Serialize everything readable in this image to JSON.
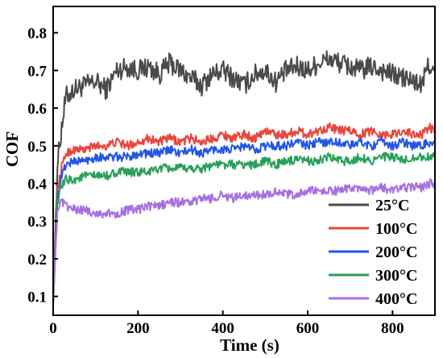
{
  "chart_data": {
    "type": "line",
    "xlabel": "Time (s)",
    "ylabel": "COF",
    "xlim": [
      0,
      900
    ],
    "ylim": [
      0.05,
      0.87
    ],
    "xticks": [
      0,
      200,
      400,
      600,
      800
    ],
    "yticks": [
      0.1,
      0.2,
      0.3,
      0.4,
      0.5,
      0.6,
      0.7,
      0.8
    ],
    "legend_position": "lower-right",
    "grid": false,
    "series": [
      {
        "name": "25°C",
        "color": "#4a4a4a",
        "x": [
          0,
          10,
          20,
          30,
          50,
          75,
          100,
          125,
          150,
          175,
          200,
          225,
          250,
          275,
          300,
          325,
          350,
          375,
          400,
          425,
          450,
          475,
          500,
          525,
          550,
          575,
          600,
          625,
          650,
          675,
          700,
          725,
          750,
          775,
          800,
          825,
          850,
          870,
          885,
          900
        ],
        "y": [
          0.08,
          0.45,
          0.55,
          0.63,
          0.65,
          0.66,
          0.67,
          0.65,
          0.7,
          0.71,
          0.7,
          0.71,
          0.69,
          0.72,
          0.7,
          0.68,
          0.66,
          0.69,
          0.7,
          0.68,
          0.66,
          0.69,
          0.7,
          0.67,
          0.7,
          0.71,
          0.7,
          0.72,
          0.73,
          0.72,
          0.71,
          0.7,
          0.71,
          0.7,
          0.69,
          0.68,
          0.67,
          0.66,
          0.72,
          0.69
        ]
      },
      {
        "name": "100°C",
        "color": "#e8453c",
        "x": [
          0,
          10,
          20,
          30,
          50,
          75,
          100,
          125,
          150,
          175,
          200,
          225,
          250,
          275,
          300,
          325,
          350,
          375,
          400,
          425,
          450,
          475,
          500,
          525,
          550,
          575,
          600,
          625,
          650,
          675,
          700,
          725,
          750,
          775,
          800,
          825,
          850,
          870,
          885,
          900
        ],
        "y": [
          0.08,
          0.38,
          0.44,
          0.48,
          0.49,
          0.49,
          0.5,
          0.5,
          0.51,
          0.5,
          0.51,
          0.52,
          0.51,
          0.52,
          0.51,
          0.52,
          0.51,
          0.52,
          0.53,
          0.52,
          0.53,
          0.52,
          0.54,
          0.53,
          0.53,
          0.54,
          0.53,
          0.54,
          0.55,
          0.54,
          0.54,
          0.53,
          0.54,
          0.53,
          0.53,
          0.54,
          0.53,
          0.53,
          0.55,
          0.54
        ]
      },
      {
        "name": "200°C",
        "color": "#2255e6",
        "x": [
          0,
          10,
          20,
          30,
          50,
          75,
          100,
          125,
          150,
          175,
          200,
          225,
          250,
          275,
          300,
          325,
          350,
          375,
          400,
          425,
          450,
          475,
          500,
          525,
          550,
          575,
          600,
          625,
          650,
          675,
          700,
          725,
          750,
          775,
          800,
          825,
          850,
          870,
          885,
          900
        ],
        "y": [
          0.08,
          0.36,
          0.42,
          0.45,
          0.46,
          0.46,
          0.47,
          0.47,
          0.47,
          0.47,
          0.48,
          0.48,
          0.48,
          0.49,
          0.48,
          0.49,
          0.48,
          0.49,
          0.49,
          0.49,
          0.5,
          0.49,
          0.5,
          0.5,
          0.5,
          0.51,
          0.5,
          0.51,
          0.51,
          0.51,
          0.5,
          0.51,
          0.5,
          0.51,
          0.5,
          0.51,
          0.5,
          0.5,
          0.51,
          0.5
        ]
      },
      {
        "name": "300°C",
        "color": "#27a05a",
        "x": [
          0,
          10,
          20,
          30,
          50,
          75,
          100,
          125,
          150,
          175,
          200,
          225,
          250,
          275,
          300,
          325,
          350,
          375,
          400,
          425,
          450,
          475,
          500,
          525,
          550,
          575,
          600,
          625,
          650,
          675,
          700,
          725,
          750,
          775,
          800,
          825,
          850,
          870,
          885,
          900
        ],
        "y": [
          0.08,
          0.35,
          0.39,
          0.41,
          0.41,
          0.42,
          0.42,
          0.42,
          0.43,
          0.43,
          0.43,
          0.43,
          0.44,
          0.44,
          0.44,
          0.44,
          0.44,
          0.45,
          0.45,
          0.45,
          0.45,
          0.45,
          0.46,
          0.45,
          0.46,
          0.46,
          0.46,
          0.46,
          0.47,
          0.46,
          0.46,
          0.47,
          0.46,
          0.47,
          0.47,
          0.46,
          0.47,
          0.47,
          0.47,
          0.47
        ]
      },
      {
        "name": "400°C",
        "color": "#a66fe0",
        "x": [
          0,
          10,
          20,
          30,
          50,
          75,
          100,
          125,
          150,
          175,
          200,
          225,
          250,
          275,
          300,
          325,
          350,
          375,
          400,
          425,
          450,
          475,
          500,
          525,
          550,
          575,
          600,
          625,
          650,
          675,
          700,
          725,
          750,
          775,
          800,
          825,
          850,
          870,
          885,
          900
        ],
        "y": [
          0.08,
          0.33,
          0.35,
          0.34,
          0.33,
          0.33,
          0.32,
          0.32,
          0.32,
          0.33,
          0.33,
          0.34,
          0.34,
          0.35,
          0.35,
          0.35,
          0.36,
          0.36,
          0.37,
          0.36,
          0.37,
          0.37,
          0.37,
          0.38,
          0.37,
          0.37,
          0.38,
          0.38,
          0.38,
          0.38,
          0.39,
          0.38,
          0.38,
          0.39,
          0.38,
          0.39,
          0.39,
          0.39,
          0.4,
          0.4
        ]
      }
    ]
  }
}
